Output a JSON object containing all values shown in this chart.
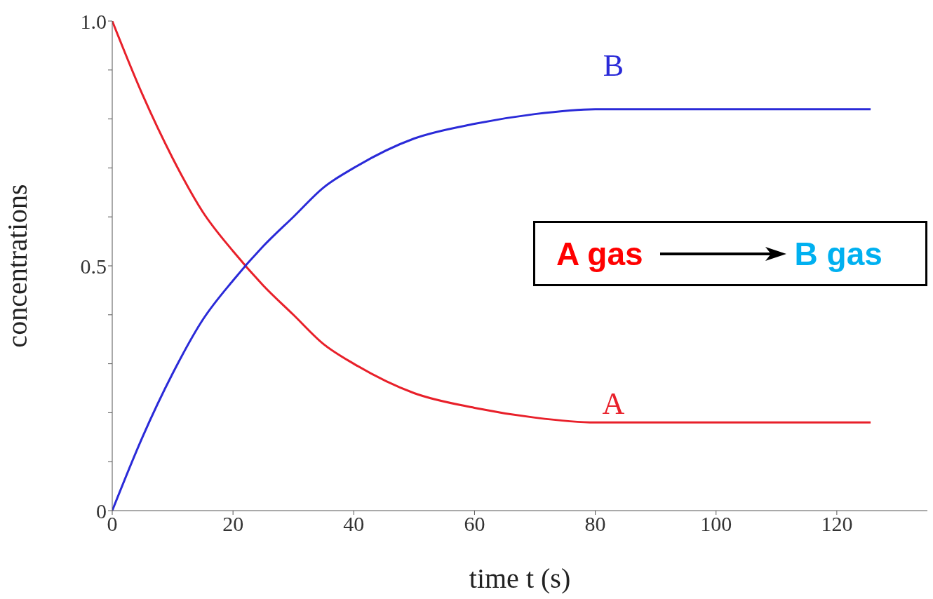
{
  "chart_data": {
    "type": "line",
    "xlabel": "time t (s)",
    "ylabel": "concentrations",
    "x": [
      0,
      5,
      10,
      15,
      20,
      25,
      30,
      35,
      40,
      50,
      60,
      70,
      80,
      90,
      100,
      110,
      125.6
    ],
    "series": [
      {
        "color": "#e8202a",
        "values": [
          1.0,
          0.85,
          0.72,
          0.61,
          0.53,
          0.46,
          0.4,
          0.34,
          0.3,
          0.24,
          0.21,
          0.19,
          0.18,
          0.18,
          0.18,
          0.18,
          0.18
        ]
      },
      {
        "color": "#2a2ad8",
        "values": [
          0,
          0.15,
          0.28,
          0.39,
          0.47,
          0.54,
          0.6,
          0.66,
          0.7,
          0.76,
          0.79,
          0.81,
          0.82,
          0.82,
          0.82,
          0.82,
          0.82
        ]
      }
    ],
    "annotations": [
      {
        "text": "A",
        "x": 83,
        "y": 0.18
      },
      {
        "text": "B",
        "x": 83,
        "y": 0.82
      },
      "A gas",
      "B gas"
    ],
    "xlim": [
      0,
      135
    ],
    "xticks": [
      0,
      20,
      40,
      60,
      80,
      100,
      120
    ],
    "ylim": [
      0,
      1
    ],
    "yticks": [
      0,
      {
        "value": 0.1,
        "label": null
      },
      {
        "value": 0.2,
        "label": null
      },
      {
        "value": 0.3,
        "label": null
      },
      {
        "value": 0.4,
        "label": null
      },
      0.5,
      {
        "value": 0.6,
        "label": null
      },
      {
        "value": 0.7,
        "label": null
      },
      {
        "value": 0.8,
        "label": null
      },
      {
        "value": 0.9,
        "label": null
      },
      {
        "value": 1,
        "label": "1.0"
      }
    ],
    "marker": "none"
  }
}
